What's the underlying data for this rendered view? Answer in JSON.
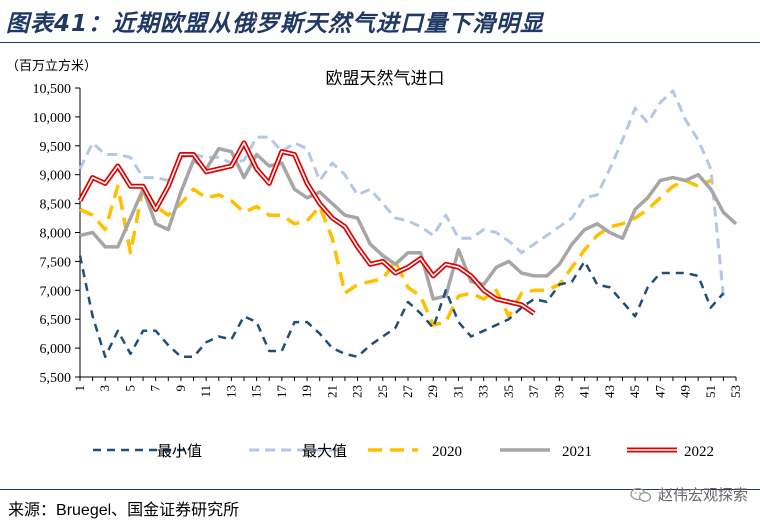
{
  "figure_title": "图表41：近期欧盟从俄罗斯天然气进口量下滑明显",
  "source_label": "来源：",
  "source_text": "Bruegel、国金证券研究所",
  "brand_text": "赵伟宏观探索",
  "brand_icon": "wechat-icon",
  "chart_data": {
    "type": "line",
    "title": "欧盟天然气进口",
    "unit_label": "（百万立方米）",
    "ylim": [
      5500,
      10500
    ],
    "yticks": [
      5500,
      6000,
      6500,
      7000,
      7500,
      8000,
      8500,
      9000,
      9500,
      10000,
      10500
    ],
    "ytick_labels": [
      "5,500",
      "6,000",
      "6,500",
      "7,000",
      "7,500",
      "8,000",
      "8,500",
      "9,000",
      "9,500",
      "10,000",
      "10,500"
    ],
    "xlim": [
      1,
      53
    ],
    "xticks": [
      1,
      3,
      5,
      7,
      9,
      11,
      13,
      15,
      17,
      19,
      21,
      23,
      25,
      27,
      29,
      31,
      33,
      35,
      37,
      39,
      41,
      43,
      45,
      47,
      49,
      51,
      53
    ],
    "legend_position": "bottom",
    "series": [
      {
        "name": "最小值",
        "color": "#1f4e79",
        "style": "dash-dark",
        "values": [
          7600,
          6550,
          5850,
          6300,
          5900,
          6300,
          6300,
          6050,
          5850,
          5850,
          6100,
          6200,
          6150,
          6550,
          6450,
          5950,
          5950,
          6450,
          6450,
          6250,
          6000,
          5900,
          5850,
          6050,
          6200,
          6350,
          6800,
          6600,
          6350,
          7000,
          6450,
          6200,
          6300,
          6400,
          6500,
          6700,
          6850,
          6800,
          7100,
          7150,
          7500,
          7100,
          7050,
          6800,
          6550,
          7050,
          7300,
          7300,
          7300,
          7250,
          6700,
          6950,
          null
        ]
      },
      {
        "name": "最大值",
        "color": "#b4c7e7",
        "style": "dash-light",
        "values": [
          9100,
          9550,
          9350,
          9350,
          9300,
          8950,
          8950,
          8900,
          9300,
          9350,
          9300,
          9300,
          9200,
          9250,
          9650,
          9650,
          9400,
          9550,
          9450,
          8900,
          9200,
          9000,
          8650,
          8750,
          8500,
          8250,
          8200,
          8100,
          7950,
          8300,
          7900,
          7900,
          8050,
          8000,
          7850,
          7650,
          7800,
          7950,
          8100,
          8250,
          8600,
          8650,
          9100,
          9600,
          10150,
          9900,
          10250,
          10450,
          9950,
          9600,
          9100,
          6900,
          null
        ]
      },
      {
        "name": "2020",
        "color": "#ffc000",
        "style": "dash-gold",
        "values": [
          8400,
          8300,
          8050,
          8800,
          7650,
          8800,
          8450,
          8300,
          8500,
          8750,
          8600,
          8650,
          8550,
          8350,
          8450,
          8300,
          8300,
          8150,
          8200,
          8450,
          7900,
          6950,
          7100,
          7150,
          7200,
          7500,
          7050,
          6900,
          6400,
          6450,
          6900,
          6950,
          6850,
          7000,
          6550,
          6950,
          7000,
          7000,
          7100,
          7400,
          7700,
          7950,
          8100,
          8150,
          8250,
          8400,
          8600,
          8800,
          8900,
          8800,
          8900,
          null,
          null
        ]
      },
      {
        "name": "2021",
        "color": "#a6a6a6",
        "style": "solid-gray",
        "values": [
          7950,
          8000,
          7750,
          7750,
          8250,
          8750,
          8150,
          8050,
          8700,
          9250,
          9100,
          9450,
          9400,
          8950,
          9350,
          9150,
          9200,
          8750,
          8600,
          8700,
          8500,
          8300,
          8250,
          7800,
          7600,
          7450,
          7650,
          7650,
          6850,
          6900,
          7700,
          7150,
          7100,
          7400,
          7500,
          7300,
          7250,
          7250,
          7450,
          7800,
          8050,
          8150,
          8000,
          7900,
          8400,
          8600,
          8900,
          8950,
          8900,
          9000,
          8750,
          8350,
          8150
        ]
      },
      {
        "name": "2022",
        "color": "#e00000",
        "style": "double-red",
        "values": [
          8550,
          8950,
          8850,
          9150,
          8800,
          8800,
          8400,
          8800,
          9350,
          9350,
          9050,
          9100,
          9150,
          9550,
          9100,
          8850,
          9400,
          9350,
          8850,
          8500,
          8250,
          8100,
          7750,
          7450,
          7500,
          7300,
          7400,
          7550,
          7250,
          7450,
          7400,
          7250,
          7000,
          6850,
          6800,
          6750,
          6600,
          null,
          null,
          null,
          null,
          null,
          null,
          null,
          null,
          null,
          null,
          null,
          null,
          null,
          null,
          null,
          null
        ]
      }
    ]
  }
}
